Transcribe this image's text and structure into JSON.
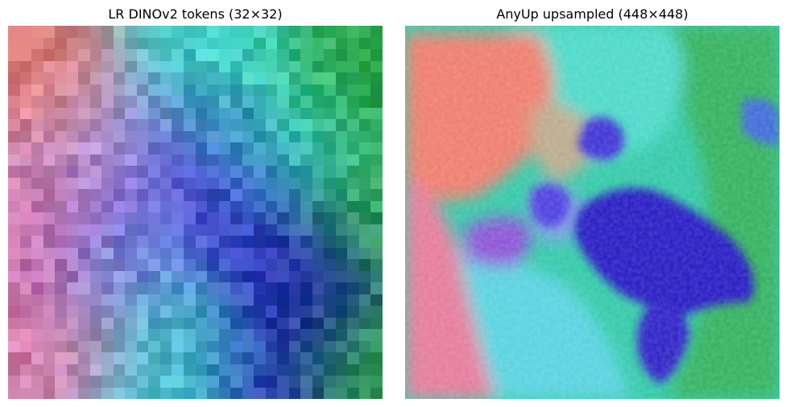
{
  "left_panel": {
    "title": "LR DINOv2 tokens (32×32)",
    "grid_size": 32
  },
  "right_panel": {
    "title": "AnyUp upsampled (448×448)"
  },
  "palette": {
    "salmon": "#ee7a6a",
    "pink": "#e77aa0",
    "mauve": "#c987b8",
    "lavender": "#a7a0e6",
    "purple": "#9a4fd8",
    "blue_violet": "#5a46e0",
    "deep_blue": "#2716c4",
    "navy": "#1a0ca8",
    "cyan": "#5ad6e8",
    "aqua": "#3ee6d0",
    "teal": "#2ec8b0",
    "mint": "#3ef2b8",
    "green": "#2eaa3c",
    "olive": "#8aa06a",
    "sand": "#b6a58a",
    "background": "#ffffff",
    "text": "#000000"
  }
}
